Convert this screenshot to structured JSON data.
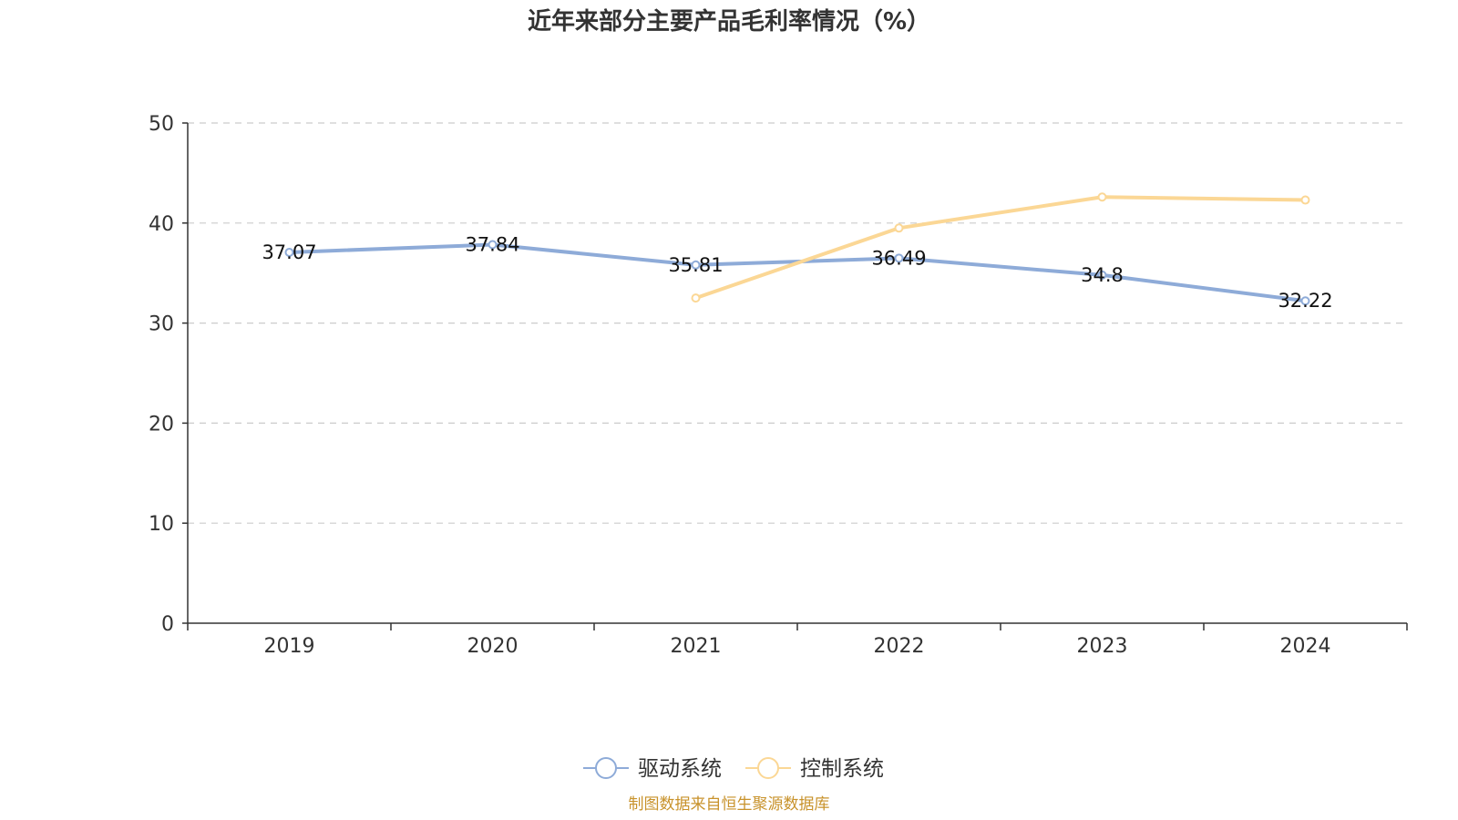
{
  "chart_data": {
    "type": "line",
    "title": "近年来部分主要产品毛利率情况（%）",
    "categories": [
      "2019",
      "2020",
      "2021",
      "2022",
      "2023",
      "2024"
    ],
    "ylim": [
      0,
      50
    ],
    "yticks": [
      0,
      10,
      20,
      30,
      40,
      50
    ],
    "grid": true,
    "legend_position": "bottom",
    "series": [
      {
        "name": "驱动系统",
        "color": "#8eabd8",
        "values": [
          37.07,
          37.84,
          35.81,
          36.49,
          34.8,
          32.22
        ],
        "labels": [
          "37.07",
          "37.84",
          "35.81",
          "36.49",
          "34.8",
          "32.22"
        ]
      },
      {
        "name": "控制系统",
        "color": "#fbd795",
        "values": [
          null,
          null,
          32.5,
          39.5,
          42.6,
          42.3
        ],
        "labels": []
      }
    ],
    "source": "制图数据来自恒生聚源数据库"
  }
}
